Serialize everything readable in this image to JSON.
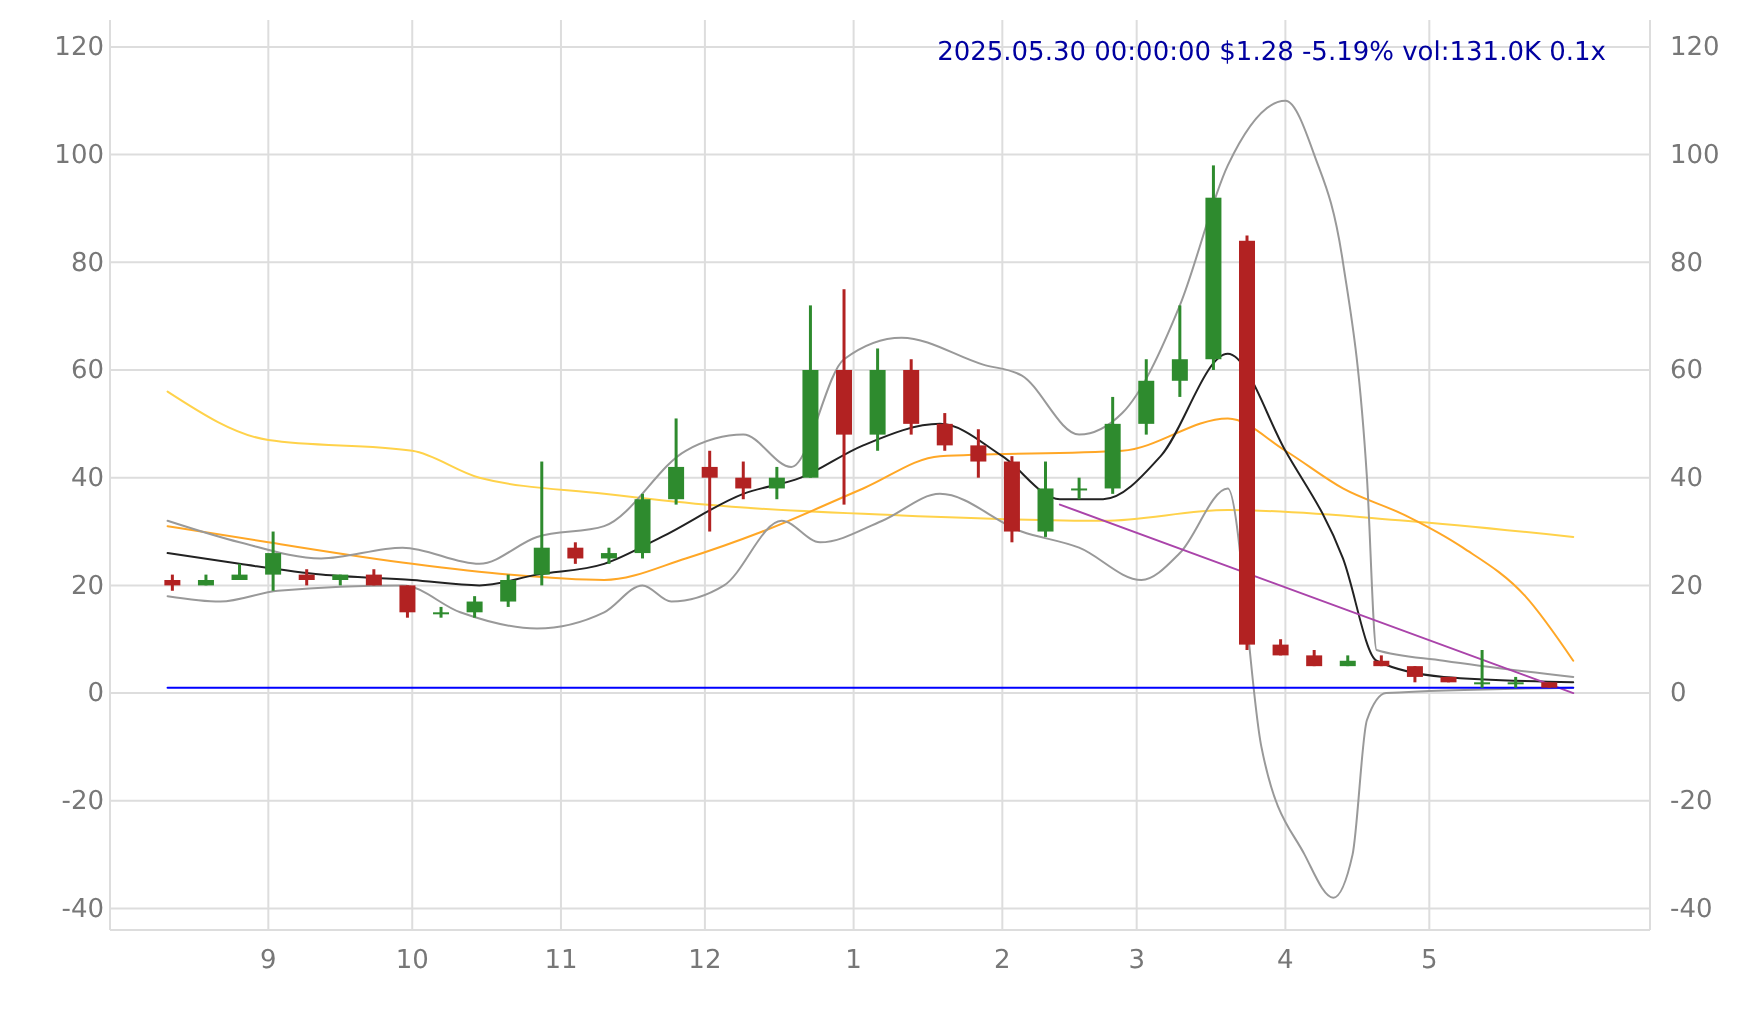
{
  "chart_data": {
    "type": "candlestick",
    "title": "2025.05.30 00:00:00 $1.28 -5.19% vol:131.0K 0.1x",
    "x": [
      "2024-08-12",
      "2024-08-19",
      "2024-08-26",
      "2024-09-02",
      "2024-09-09",
      "2024-09-16",
      "2024-09-23",
      "2024-09-30",
      "2024-10-07",
      "2024-10-14",
      "2024-10-21",
      "2024-10-28",
      "2024-11-04",
      "2024-11-11",
      "2024-11-18",
      "2024-11-25",
      "2024-12-02",
      "2024-12-09",
      "2024-12-16",
      "2024-12-23",
      "2024-12-30",
      "2025-01-06",
      "2025-01-13",
      "2025-01-20",
      "2025-01-27",
      "2025-02-03",
      "2025-02-10",
      "2025-02-17",
      "2025-02-24",
      "2025-03-03",
      "2025-03-10",
      "2025-03-17",
      "2025-03-24",
      "2025-03-31",
      "2025-04-07",
      "2025-04-14",
      "2025-04-21",
      "2025-04-28",
      "2025-05-05",
      "2025-05-12",
      "2025-05-19",
      "2025-05-26"
    ],
    "ohlc": [
      [
        21,
        22,
        19,
        20
      ],
      [
        20,
        22,
        20,
        21
      ],
      [
        21,
        24,
        21,
        22
      ],
      [
        22,
        30,
        19,
        26
      ],
      [
        22,
        23,
        20,
        21
      ],
      [
        21,
        22,
        20,
        22
      ],
      [
        22,
        23,
        20,
        20
      ],
      [
        20,
        20,
        14,
        15
      ],
      [
        15,
        16,
        14,
        15
      ],
      [
        15,
        18,
        14,
        17
      ],
      [
        17,
        22,
        16,
        21
      ],
      [
        22,
        43,
        20,
        27
      ],
      [
        27,
        28,
        24,
        25
      ],
      [
        25,
        27,
        24,
        26
      ],
      [
        26,
        37,
        25,
        36
      ],
      [
        36,
        51,
        35,
        42
      ],
      [
        42,
        45,
        30,
        40
      ],
      [
        40,
        43,
        36,
        38
      ],
      [
        38,
        42,
        36,
        40
      ],
      [
        40,
        72,
        40,
        60
      ],
      [
        60,
        75,
        35,
        48
      ],
      [
        48,
        64,
        45,
        60
      ],
      [
        60,
        62,
        48,
        50
      ],
      [
        50,
        52,
        45,
        46
      ],
      [
        46,
        49,
        40,
        43
      ],
      [
        43,
        44,
        28,
        30
      ],
      [
        30,
        43,
        29,
        38
      ],
      [
        38,
        40,
        36,
        38
      ],
      [
        38,
        55,
        37,
        50
      ],
      [
        50,
        62,
        48,
        58
      ],
      [
        58,
        72,
        55,
        62
      ],
      [
        62,
        98,
        60,
        92
      ],
      [
        84,
        85,
        8,
        9
      ],
      [
        9,
        10,
        7,
        7
      ],
      [
        7,
        8,
        5,
        5
      ],
      [
        5,
        7,
        5,
        6
      ],
      [
        6,
        7,
        5,
        5
      ],
      [
        5,
        5,
        2,
        3
      ],
      [
        3,
        3,
        2,
        2
      ],
      [
        2,
        8,
        1,
        2
      ],
      [
        2,
        3,
        1,
        2
      ],
      [
        2,
        2,
        1,
        1
      ]
    ],
    "series": [
      {
        "type": "line",
        "color": "#ffd24a",
        "x": [
          "2024-08-11",
          "2024-09-01",
          "2024-10-01",
          "2024-10-15",
          "2024-11-10",
          "2024-12-01",
          "2025-01-11",
          "2025-02-22",
          "2025-03-20",
          "2025-04-26",
          "2025-05-31"
        ],
        "values": [
          56,
          47,
          45,
          40,
          37,
          35,
          33,
          32,
          34,
          32,
          29
        ]
      },
      {
        "type": "line",
        "color": "#ffa726",
        "x": [
          "2024-08-11",
          "2024-09-01",
          "2024-10-01",
          "2024-10-21",
          "2024-11-10",
          "2024-11-27",
          "2024-12-13",
          "2025-01-03",
          "2025-01-19",
          "2025-02-26",
          "2025-03-20",
          "2025-04-01",
          "2025-04-13",
          "2025-04-26",
          "2025-05-08",
          "2025-05-21",
          "2025-05-31"
        ],
        "values": [
          31,
          28,
          24,
          22,
          21,
          25,
          30,
          38,
          44,
          45,
          51,
          45,
          38,
          33,
          27,
          18,
          6
        ]
      },
      {
        "type": "line",
        "color": "#222222",
        "x": [
          "2024-08-11",
          "2024-08-26",
          "2024-09-12",
          "2024-10-01",
          "2024-10-15",
          "2024-10-27",
          "2024-11-10",
          "2024-11-22",
          "2024-12-09",
          "2024-12-21",
          "2025-01-03",
          "2025-01-19",
          "2025-02-01",
          "2025-02-13",
          "2025-02-22",
          "2025-03-06",
          "2025-03-20",
          "2025-04-01",
          "2025-04-13",
          "2025-04-20",
          "2025-05-04",
          "2025-05-31"
        ],
        "values": [
          26,
          24,
          22,
          21,
          20,
          22,
          24,
          29,
          37,
          40,
          46,
          50,
          44,
          36,
          36,
          44,
          63,
          45,
          25,
          6,
          3,
          2
        ]
      },
      {
        "type": "line",
        "color": "#999999",
        "x": [
          "2024-08-11",
          "2024-08-26",
          "2024-09-12",
          "2024-09-29",
          "2024-10-15",
          "2024-10-27",
          "2024-11-10",
          "2024-11-27",
          "2024-12-09",
          "2024-12-19",
          "2024-12-30",
          "2025-01-11",
          "2025-01-28",
          "2025-02-05",
          "2025-02-17",
          "2025-02-26",
          "2025-03-10",
          "2025-03-20",
          "2025-04-01",
          "2025-04-07",
          "2025-04-13",
          "2025-04-18",
          "2025-04-20",
          "2025-05-04",
          "2025-05-31"
        ],
        "values": [
          32,
          28,
          25,
          27,
          24,
          29,
          31,
          45,
          48,
          42,
          62,
          66,
          61,
          59,
          48,
          52,
          72,
          98,
          110,
          100,
          80,
          40,
          8,
          6,
          3
        ]
      },
      {
        "type": "line",
        "color": "#999999",
        "x": [
          "2024-08-11",
          "2024-08-22",
          "2024-09-03",
          "2024-09-29",
          "2024-10-11",
          "2024-10-27",
          "2024-11-10",
          "2024-11-18",
          "2024-11-24",
          "2024-12-05",
          "2024-12-17",
          "2024-12-25",
          "2025-01-07",
          "2025-01-19",
          "2025-02-05",
          "2025-02-17",
          "2025-03-02",
          "2025-03-10",
          "2025-03-20",
          "2025-03-27",
          "2025-04-05",
          "2025-04-11",
          "2025-04-15",
          "2025-04-18",
          "2025-04-22",
          "2025-05-31"
        ],
        "values": [
          18,
          17,
          19,
          20,
          15,
          12,
          15,
          20,
          17,
          20,
          32,
          28,
          32,
          37,
          30,
          27,
          21,
          26,
          38,
          -10,
          -30,
          -38,
          -30,
          -5,
          0,
          1
        ]
      },
      {
        "type": "line",
        "color": "#aa44aa",
        "x": [
          "2025-02-13",
          "2025-05-31"
        ],
        "values": [
          35,
          0
        ]
      },
      {
        "type": "line",
        "color": "#0000ff",
        "x": [
          "2024-08-11",
          "2025-05-31"
        ],
        "values": [
          1,
          1
        ]
      }
    ],
    "xlim": [
      "2024-07-30",
      "2025-06-16"
    ],
    "xticks": [
      {
        "value": "2024-09-01",
        "label": "9"
      },
      {
        "value": "2024-10-01",
        "label": "10"
      },
      {
        "value": "2024-11-01",
        "label": "11"
      },
      {
        "value": "2024-12-01",
        "label": "12"
      },
      {
        "value": "2025-01-01",
        "label": "1"
      },
      {
        "value": "2025-02-01",
        "label": "2"
      },
      {
        "value": "2025-03-01",
        "label": "3"
      },
      {
        "value": "2025-04-01",
        "label": "4"
      },
      {
        "value": "2025-05-01",
        "label": "5"
      }
    ],
    "ylim": [
      -44,
      125
    ],
    "yticks": [
      -40,
      -20,
      0,
      20,
      40,
      60,
      80,
      100,
      120
    ],
    "y2lim": [
      -44,
      125
    ],
    "y2ticks": [
      -40,
      -20,
      0,
      20,
      40,
      60,
      80,
      100,
      120
    ],
    "grid": true
  }
}
